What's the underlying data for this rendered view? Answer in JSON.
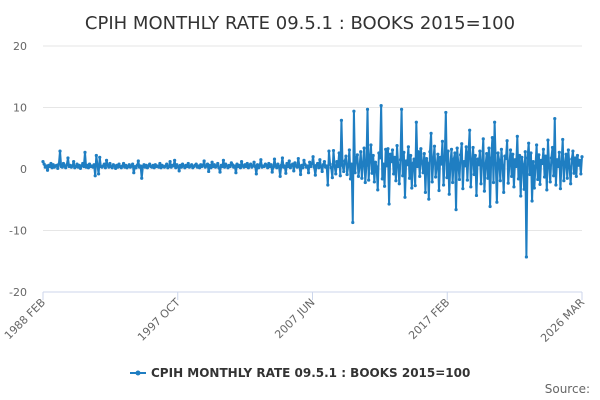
{
  "chart_data": {
    "type": "line",
    "title": "CPIH MONTHLY RATE 09.5.1 : BOOKS 2015=100",
    "xlabel": "",
    "ylabel": "",
    "x_tick_labels": [
      "1988 FEB",
      "1997 OCT",
      "2007 JUN",
      "2017 FEB",
      "2026 MAR"
    ],
    "y_ticks": [
      20,
      10,
      0,
      -10,
      -20
    ],
    "ylim": [
      -20,
      20
    ],
    "xlim": [
      "1988 FEB",
      "2026 MAR"
    ],
    "grid": "horizontal",
    "legend": "bottom-center",
    "series": [
      {
        "name": "CPIH MONTHLY RATE 09.5.1 : BOOKS 2015=100",
        "color": "#1f7ec2",
        "x_start": "1988 FEB",
        "frequency": "monthly",
        "values": [
          1.2,
          0.8,
          0.3,
          0.5,
          -0.2,
          0.6,
          0.4,
          0.9,
          0.2,
          0.7,
          0.3,
          0.5,
          0.6,
          0.1,
          0.8,
          2.9,
          0.4,
          0.3,
          0.9,
          0.5,
          0.2,
          0.7,
          1.8,
          0.4,
          0.6,
          0.3,
          0.5,
          1.2,
          0.2,
          0.4,
          0.8,
          0.3,
          0.6,
          0.1,
          0.5,
          0.9,
          0.4,
          2.7,
          0.3,
          0.6,
          0.2,
          0.8,
          0.4,
          0.5,
          0.3,
          0.7,
          -1.1,
          2.2,
          0.6,
          -0.8,
          1.9,
          0.4,
          0.3,
          0.5,
          0.8,
          0.2,
          1.4,
          0.6,
          0.3,
          0.9,
          0.4,
          0.2,
          0.7,
          0.5,
          0.1,
          0.6,
          0.3,
          0.8,
          0.4,
          0.2,
          0.5,
          0.9,
          0.3,
          0.6,
          0.2,
          0.4,
          0.7,
          0.3,
          0.5,
          0.8,
          -0.6,
          0.4,
          0.2,
          0.6,
          1.3,
          0.3,
          0.5,
          -1.5,
          0.4,
          0.7,
          0.3,
          0.6,
          0.2,
          0.5,
          0.8,
          0.4,
          0.3,
          0.6,
          0.2,
          0.7,
          0.4,
          0.5,
          0.3,
          0.9,
          0.2,
          0.6,
          0.4,
          0.3,
          0.5,
          0.8,
          0.2,
          0.4,
          1.2,
          0.3,
          0.6,
          0.5,
          1.4,
          0.2,
          0.7,
          0.4,
          -0.3,
          0.6,
          0.3,
          0.8,
          0.5,
          0.2,
          0.6,
          0.4,
          0.9,
          0.3,
          0.5,
          0.7,
          0.2,
          0.4,
          0.6,
          0.8,
          0.3,
          0.5,
          0.2,
          0.7,
          0.4,
          0.6,
          1.3,
          0.3,
          0.5,
          0.8,
          -0.4,
          0.6,
          0.2,
          1.1,
          0.4,
          0.7,
          0.3,
          0.5,
          0.9,
          0.2,
          -0.5,
          0.6,
          0.4,
          1.4,
          0.3,
          0.8,
          0.5,
          0.2,
          0.6,
          0.4,
          1.0,
          0.7,
          0.3,
          0.5,
          -0.6,
          0.8,
          0.4,
          0.6,
          0.2,
          1.2,
          0.5,
          0.3,
          0.7,
          0.4,
          0.9,
          0.2,
          0.6,
          0.8,
          0.3,
          0.5,
          1.1,
          0.4,
          -0.8,
          0.7,
          0.2,
          0.6,
          1.5,
          0.3,
          0.5,
          0.4,
          0.8,
          0.6,
          0.2,
          0.9,
          0.4,
          0.7,
          -0.5,
          0.3,
          1.6,
          0.5,
          0.2,
          0.8,
          0.4,
          -1.2,
          0.6,
          1.8,
          0.3,
          0.5,
          -0.7,
          0.9,
          0.4,
          1.3,
          0.2,
          0.6,
          0.8,
          -0.3,
          1.0,
          0.5,
          0.3,
          1.7,
          0.4,
          -0.9,
          0.6,
          0.2,
          1.4,
          0.7,
          0.3,
          0.5,
          -0.6,
          1.1,
          0.4,
          0.8,
          2.0,
          0.3,
          -1.0,
          0.6,
          0.9,
          0.2,
          1.5,
          0.4,
          -0.4,
          0.7,
          1.2,
          0.3,
          0.5,
          -2.6,
          2.9,
          0.8,
          0.2,
          -1.4,
          3.0,
          0.5,
          -0.8,
          1.2,
          0.4,
          2.6,
          -1.1,
          7.9,
          0.6,
          -0.4,
          1.3,
          2.1,
          -0.9,
          0.5,
          3.1,
          -1.6,
          0.8,
          -8.7,
          9.4,
          -0.6,
          1.8,
          2.3,
          -1.2,
          0.4,
          2.8,
          -1.5,
          0.9,
          3.4,
          -2.2,
          0.6,
          9.7,
          -1.8,
          1.4,
          3.9,
          -0.7,
          2.2,
          -2.1,
          1.1,
          0.3,
          -3.4,
          2.6,
          1.8,
          10.3,
          -1.6,
          0.8,
          -2.8,
          3.2,
          0.5,
          3.3,
          -5.7,
          2.4,
          1.2,
          3.1,
          -0.8,
          1.9,
          -1.9,
          3.8,
          0.6,
          -2.4,
          1.5,
          9.7,
          -1.1,
          2.7,
          -4.6,
          1.3,
          0.7,
          3.6,
          -1.5,
          2.2,
          -3.1,
          0.9,
          1.6,
          -2.7,
          7.6,
          0.4,
          2.8,
          -1.2,
          3.3,
          1.1,
          -0.6,
          2.5,
          -3.8,
          1.7,
          0.9,
          -4.9,
          2.8,
          5.8,
          -2.1,
          1.4,
          3.7,
          -1.3,
          0.6,
          2.4,
          -3.5,
          1.9,
          0.8,
          4.5,
          -2.6,
          1.5,
          9.2,
          -1.4,
          2.9,
          -4.1,
          0.7,
          3.2,
          -2.2,
          1.6,
          2.6,
          -6.6,
          3.4,
          0.9,
          -1.7,
          2.3,
          4.1,
          -3.2,
          1.2,
          0.5,
          3.6,
          -1.8,
          2.7,
          6.3,
          -2.9,
          1.1,
          3.5,
          -0.9,
          2.2,
          -4.3,
          1.6,
          0.7,
          2.9,
          -2.4,
          1.3,
          4.9,
          -3.6,
          0.6,
          2.5,
          -1.5,
          3.4,
          -6.1,
          1.8,
          5.1,
          -2.2,
          7.6,
          0.9,
          -5.4,
          2.6,
          1.4,
          -1.9,
          3.2,
          0.6,
          -3.8,
          2.1,
          1.7,
          4.6,
          -2.3,
          0.8,
          3.1,
          -1.2,
          2.4,
          -2.9,
          1.5,
          0.4,
          5.3,
          -1.6,
          2.2,
          -4.4,
          1.9,
          0.7,
          -3.3,
          2.8,
          -14.3,
          1.8,
          4.2,
          -0.9,
          2.6,
          -5.2,
          1.2,
          -3.1,
          0.5,
          3.9,
          -1.7,
          2.3,
          -2.5,
          1.4,
          0.9,
          3.2,
          -1.3,
          2.1,
          -3.4,
          4.7,
          0.6,
          -2.1,
          1.8,
          3.5,
          -1.1,
          8.2,
          -2.6,
          1.5,
          0.4,
          2.7,
          -3.2,
          1.1,
          4.8,
          -1.9,
          0.8,
          2.4,
          -1.5,
          3.1,
          0.3,
          -2.4,
          1.6,
          2.9,
          -0.7,
          1.8,
          -1.2,
          2.2,
          0.6,
          1.4,
          -0.8,
          2.0
        ]
      }
    ]
  },
  "legend": {
    "label": "CPIH MONTHLY RATE 09.5.1 : BOOKS 2015=100"
  },
  "credits": {
    "label": "Source:"
  }
}
